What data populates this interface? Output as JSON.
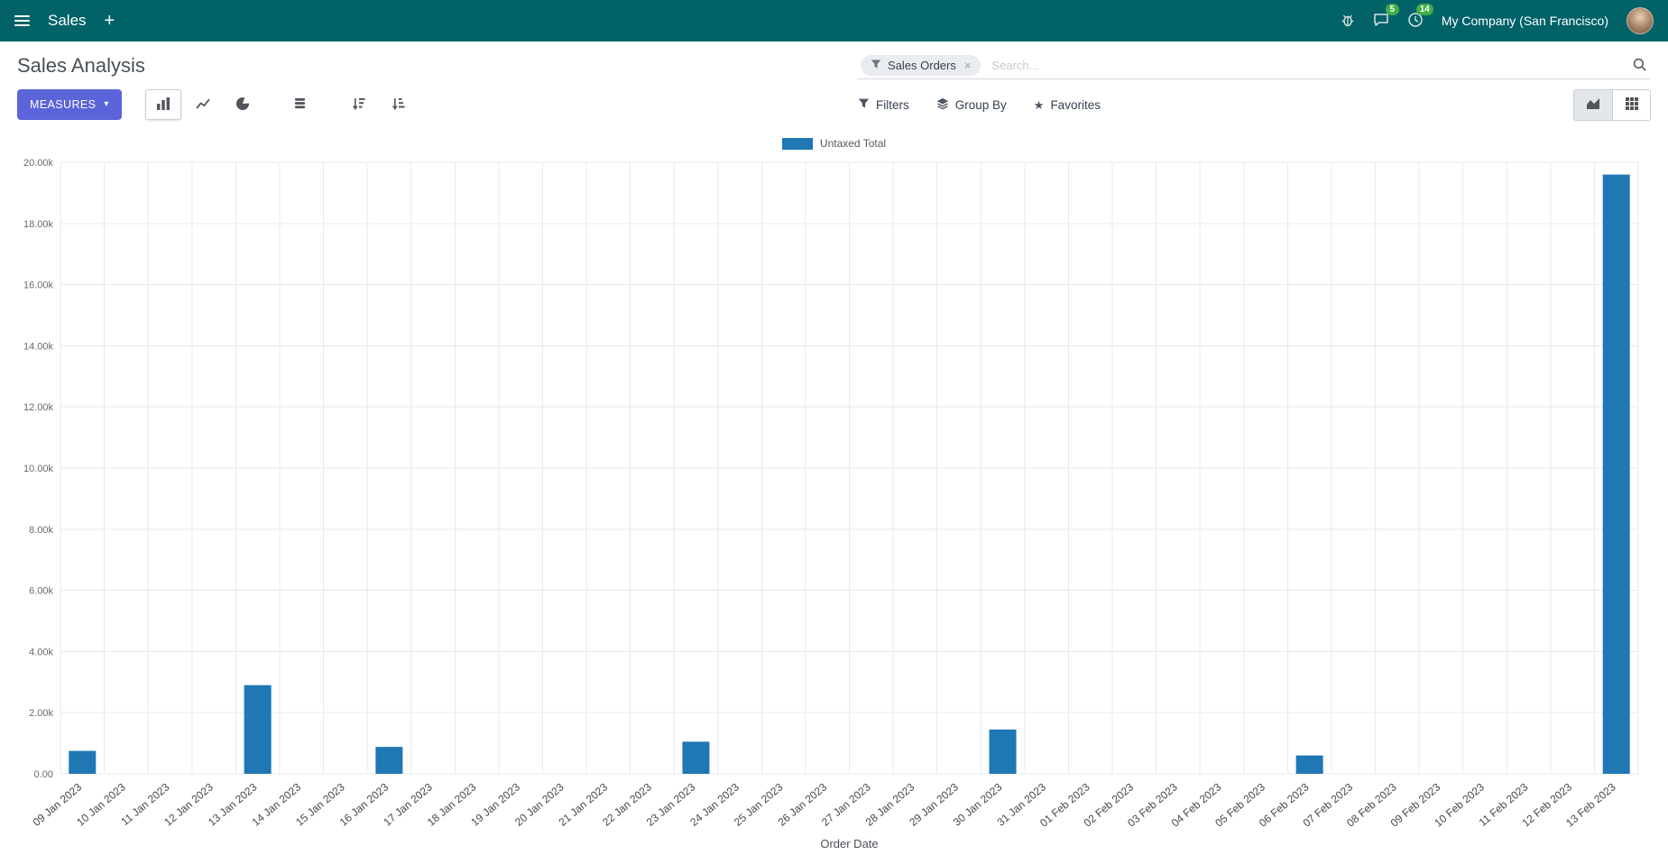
{
  "navbar": {
    "app_name": "Sales",
    "company": "My Company (San Francisco)",
    "messages_badge": "5",
    "activities_badge": "14"
  },
  "icons": {
    "caret_down": "▾",
    "close": "×",
    "star": "★",
    "plus": "+"
  },
  "control_panel": {
    "title": "Sales Analysis",
    "search": {
      "facet_label": "Sales Orders",
      "placeholder": "Search..."
    },
    "measures_label": "MEASURES",
    "filters_label": "Filters",
    "group_by_label": "Group By",
    "favorites_label": "Favorites"
  },
  "chart_data": {
    "type": "bar",
    "title": "",
    "xlabel": "Order Date",
    "ylabel": "",
    "ylim": [
      0,
      20000
    ],
    "ytick_step": 2000,
    "ytick_labels": [
      "0.00",
      "2.00k",
      "4.00k",
      "6.00k",
      "8.00k",
      "10.00k",
      "12.00k",
      "14.00k",
      "16.00k",
      "18.00k",
      "20.00k"
    ],
    "grid": true,
    "legend_position": "top",
    "categories": [
      "09 Jan 2023",
      "10 Jan 2023",
      "11 Jan 2023",
      "12 Jan 2023",
      "13 Jan 2023",
      "14 Jan 2023",
      "15 Jan 2023",
      "16 Jan 2023",
      "17 Jan 2023",
      "18 Jan 2023",
      "19 Jan 2023",
      "20 Jan 2023",
      "21 Jan 2023",
      "22 Jan 2023",
      "23 Jan 2023",
      "24 Jan 2023",
      "25 Jan 2023",
      "26 Jan 2023",
      "27 Jan 2023",
      "28 Jan 2023",
      "29 Jan 2023",
      "30 Jan 2023",
      "31 Jan 2023",
      "01 Feb 2023",
      "02 Feb 2023",
      "03 Feb 2023",
      "04 Feb 2023",
      "05 Feb 2023",
      "06 Feb 2023",
      "07 Feb 2023",
      "08 Feb 2023",
      "09 Feb 2023",
      "10 Feb 2023",
      "11 Feb 2023",
      "12 Feb 2023",
      "13 Feb 2023"
    ],
    "series": [
      {
        "name": "Untaxed Total",
        "color": "#1f77b4",
        "values": [
          750,
          0,
          0,
          0,
          2900,
          0,
          0,
          880,
          0,
          0,
          0,
          0,
          0,
          0,
          1050,
          0,
          0,
          0,
          0,
          0,
          0,
          1450,
          0,
          0,
          0,
          0,
          0,
          0,
          600,
          0,
          0,
          0,
          0,
          0,
          0,
          19600
        ]
      }
    ]
  }
}
